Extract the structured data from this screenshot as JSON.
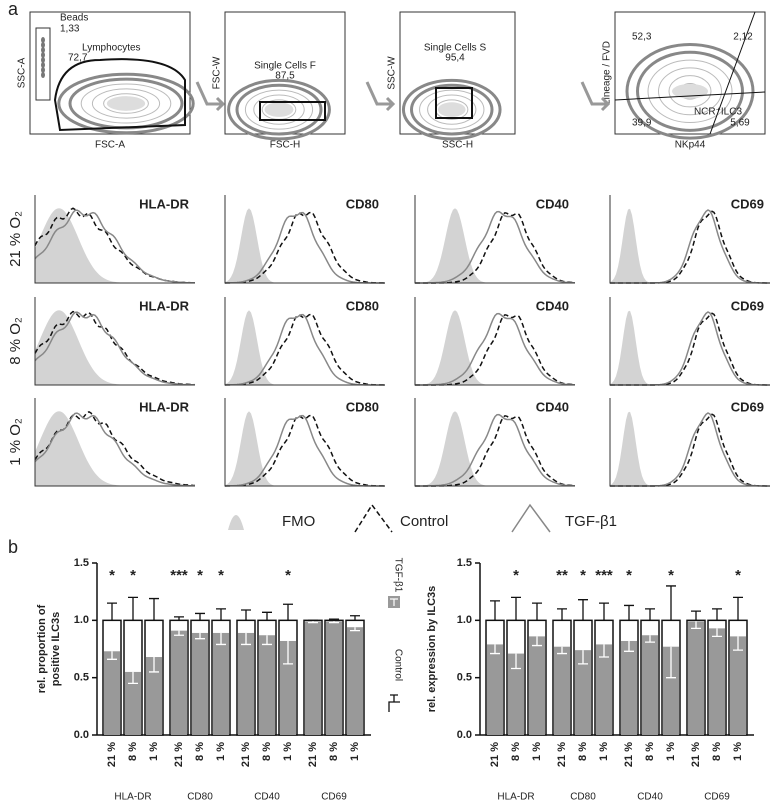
{
  "panel_a": {
    "label": "a",
    "gates": [
      {
        "y_label": "SSC-A",
        "x_label": "FSC-A",
        "texts": [
          "Beads",
          "1,33",
          "Lymphocytes",
          "72,7"
        ]
      },
      {
        "y_label": "FSC-W",
        "x_label": "FSC-H",
        "texts": [
          "Single Cells F",
          "87,5"
        ]
      },
      {
        "y_label": "SSC-W",
        "x_label": "SSC-H",
        "texts": [
          "Single Cells S",
          "95,4"
        ]
      },
      {
        "y_label": "Lineage / FVD",
        "x_label": "NKp44",
        "texts": [
          "52,3",
          "2,12",
          "39,9",
          "5,69",
          "NCR⁺ILC3"
        ]
      }
    ],
    "histograms": {
      "rows": [
        "21 % O₂",
        "8 % O₂",
        "1 % O₂"
      ],
      "markers": [
        "HLA-DR",
        "CD80",
        "CD40",
        "CD69"
      ]
    },
    "legend": [
      "FMO",
      "Control",
      "TGF-β1"
    ]
  },
  "panel_b_label": "b",
  "chart_data": [
    {
      "type": "bar",
      "ylabel": [
        "rel. proportion of",
        "positive ILC3s"
      ],
      "groups": [
        "HLA-DR",
        "CD80",
        "CD40",
        "CD69"
      ],
      "categories": [
        "21 %",
        "8 %",
        "1 %",
        "21 %",
        "8 %",
        "1 %",
        "21 %",
        "8 %",
        "1 %",
        "21 %",
        "8 %",
        "1 %"
      ],
      "series": [
        {
          "name": "Control",
          "color": "#ffffff",
          "values": [
            1,
            1,
            1,
            1,
            1,
            1,
            1,
            1,
            1,
            1,
            1,
            1
          ],
          "errors": [
            0.15,
            0.2,
            0.19,
            0.03,
            0.06,
            0.1,
            0.09,
            0.07,
            0.14,
            0,
            0.01,
            0.04
          ]
        },
        {
          "name": "TGF-β1",
          "color": "#999999",
          "values": [
            0.73,
            0.55,
            0.68,
            0.91,
            0.89,
            0.89,
            0.89,
            0.87,
            0.82,
            0.99,
            0.99,
            0.94
          ],
          "errors": [
            0.07,
            0.1,
            0.13,
            0.04,
            0.05,
            0.1,
            0.1,
            0.08,
            0.2,
            0.01,
            0.01,
            0.03
          ]
        }
      ],
      "stars": [
        {
          "bar": 0,
          "text": "*"
        },
        {
          "bar": 1,
          "text": "*"
        },
        {
          "bar": 3,
          "text": "***"
        },
        {
          "bar": 4,
          "text": "*"
        },
        {
          "bar": 5,
          "text": "*"
        },
        {
          "bar": 8,
          "text": "*"
        }
      ],
      "ylim": [
        0,
        1.5
      ],
      "yticks": [
        {
          "value": 0,
          "label": "0.0"
        },
        0.5,
        {
          "value": 1,
          "label": "1.0"
        },
        1.5
      ]
    },
    {
      "type": "bar",
      "ylabel": [
        "rel. expression by ILC3s"
      ],
      "groups": [
        "HLA-DR",
        "CD80",
        "CD40",
        "CD69"
      ],
      "categories": [
        "21 %",
        "8 %",
        "1 %",
        "21 %",
        "8 %",
        "1 %",
        "21 %",
        "8 %",
        "1 %",
        "21 %",
        "8 %",
        "1 %"
      ],
      "series": [
        {
          "name": "Control",
          "color": "#ffffff",
          "values": [
            1,
            1,
            1,
            1,
            1,
            1,
            1,
            1,
            1,
            1,
            1,
            1
          ],
          "errors": [
            0.17,
            0.2,
            0.15,
            0.1,
            0.18,
            0.15,
            0.13,
            0.1,
            0.3,
            0.08,
            0.1,
            0.2
          ]
        },
        {
          "name": "TGF-β1",
          "color": "#999999",
          "values": [
            0.79,
            0.71,
            0.86,
            0.77,
            0.74,
            0.79,
            0.82,
            0.87,
            0.77,
            0.99,
            0.93,
            0.86
          ],
          "errors": [
            0.08,
            0.13,
            0.08,
            0.06,
            0.12,
            0.11,
            0.09,
            0.06,
            0.27,
            0.06,
            0.07,
            0.12
          ]
        }
      ],
      "stars": [
        {
          "bar": 1,
          "text": "*"
        },
        {
          "bar": 3,
          "text": "**"
        },
        {
          "bar": 4,
          "text": "*"
        },
        {
          "bar": 5,
          "text": "***"
        },
        {
          "bar": 6,
          "text": "*"
        },
        {
          "bar": 8,
          "text": "*"
        },
        {
          "bar": 11,
          "text": "*"
        }
      ],
      "ylim": [
        0,
        1.5
      ],
      "yticks": [
        {
          "value": 0,
          "label": "0.0"
        },
        0.5,
        {
          "value": 1,
          "label": "1.0"
        },
        1.5
      ]
    }
  ]
}
